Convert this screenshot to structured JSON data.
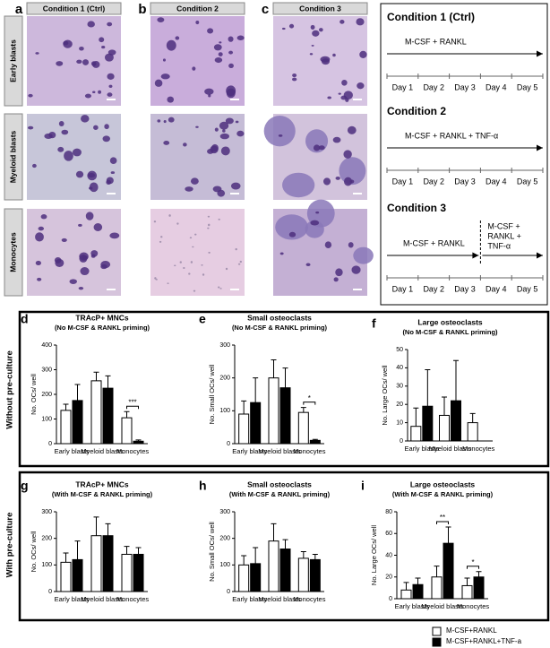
{
  "micrographs": {
    "letters": [
      "a",
      "b",
      "c"
    ],
    "columns": [
      "Condition 1 (Ctrl)",
      "Condition 2",
      "Condition 3"
    ],
    "rows": [
      "Early blasts",
      "Myeloid blasts",
      "Monocytes"
    ]
  },
  "timeline": {
    "days": [
      "Day 1",
      "Day 2",
      "Day 3",
      "Day 4",
      "Day 5"
    ],
    "conditions": [
      {
        "title": "Condition 1 (Ctrl)",
        "phases": [
          [
            "M-CSF + RANKL"
          ]
        ]
      },
      {
        "title": "Condition 2",
        "phases": [
          [
            "M-CSF + RANKL + TNF-α"
          ]
        ]
      },
      {
        "title": "Condition 3",
        "phases": [
          [
            "M-CSF + RANKL"
          ],
          [
            "M-CSF +",
            "RANKL +",
            "TNF-α"
          ]
        ]
      }
    ]
  },
  "sections": [
    "Without pre-culture",
    "With pre-culture"
  ],
  "legend": [
    {
      "name": "M-CSF+RANKL",
      "color": "#ffffff"
    },
    {
      "name": "M-CSF+RANKL+TNF-a",
      "color": "#000000"
    }
  ],
  "chart_data": [
    {
      "type": "bar",
      "panel": "d",
      "title": "TRAcP+ MNCs",
      "subtitle": "(No M-CSF & RANKL priming)",
      "y_label": "No. OCs/ well",
      "categories": [
        "Early blasts",
        "Myeloid blasts",
        "Monocytes"
      ],
      "ylim": [
        0,
        400
      ],
      "yticks": [
        0,
        100,
        200,
        300,
        400
      ],
      "series": [
        {
          "values": [
            135,
            255,
            105
          ],
          "errors": [
            25,
            35,
            25
          ]
        },
        {
          "values": [
            175,
            225,
            10
          ],
          "errors": [
            65,
            50,
            5
          ]
        }
      ],
      "significance": [
        null,
        null,
        "***"
      ]
    },
    {
      "type": "bar",
      "panel": "e",
      "title": "Small osteoclasts",
      "subtitle": "(No M-CSF & RANKL priming)",
      "y_label": "No. Small OCs/ well",
      "categories": [
        "Early blasts",
        "Myeloid blasts",
        "Monocytes"
      ],
      "ylim": [
        0,
        300
      ],
      "yticks": [
        0,
        100,
        200,
        300
      ],
      "series": [
        {
          "values": [
            90,
            200,
            95
          ],
          "errors": [
            40,
            55,
            15
          ]
        },
        {
          "values": [
            125,
            170,
            10
          ],
          "errors": [
            75,
            60,
            3
          ]
        }
      ],
      "significance": [
        null,
        null,
        "*"
      ]
    },
    {
      "type": "bar",
      "panel": "f",
      "title": "Large osteoclasts",
      "subtitle": "(No M-CSF & RANKL priming)",
      "y_label": "No. Large OCs/ well",
      "categories": [
        "Early blasts",
        "Myeloid blasts",
        "Monocytes"
      ],
      "ylim": [
        0,
        50
      ],
      "yticks": [
        0,
        10,
        20,
        30,
        40,
        50
      ],
      "series": [
        {
          "values": [
            8,
            14,
            10
          ],
          "errors": [
            10,
            10,
            5
          ]
        },
        {
          "values": [
            19,
            22,
            null
          ],
          "errors": [
            20,
            22,
            null
          ]
        }
      ],
      "significance": [
        null,
        null,
        null
      ]
    },
    {
      "type": "bar",
      "panel": "g",
      "title": "TRAcP+ MNCs",
      "subtitle": "(With M-CSF & RANKL priming)",
      "y_label": "No. OCs/ well",
      "categories": [
        "Early blasts",
        "Myeloid blasts",
        "Monocytes"
      ],
      "ylim": [
        0,
        300
      ],
      "yticks": [
        0,
        100,
        200,
        300
      ],
      "series": [
        {
          "values": [
            110,
            210,
            140
          ],
          "errors": [
            35,
            70,
            30
          ]
        },
        {
          "values": [
            120,
            210,
            140
          ],
          "errors": [
            70,
            45,
            25
          ]
        }
      ],
      "significance": [
        null,
        null,
        null
      ]
    },
    {
      "type": "bar",
      "panel": "h",
      "title": "Small osteoclasts",
      "subtitle": "(With M-CSF & RANKL priming)",
      "y_label": "No. Small OCs/ well",
      "categories": [
        "Early blasts",
        "Myeloid blasts",
        "Monocytes"
      ],
      "ylim": [
        0,
        300
      ],
      "yticks": [
        0,
        100,
        200,
        300
      ],
      "series": [
        {
          "values": [
            100,
            190,
            125
          ],
          "errors": [
            35,
            65,
            25
          ]
        },
        {
          "values": [
            105,
            160,
            120
          ],
          "errors": [
            60,
            35,
            20
          ]
        }
      ],
      "significance": [
        null,
        null,
        null
      ]
    },
    {
      "type": "bar",
      "panel": "i",
      "title": "Large osteoclasts",
      "subtitle": "(With M-CSF & RANKL priming)",
      "y_label": "No. Large OCs/ well",
      "categories": [
        "Early blasts",
        "Myeloid blasts",
        "Monocytes"
      ],
      "ylim": [
        0,
        80
      ],
      "yticks": [
        0,
        20,
        40,
        60,
        80
      ],
      "series": [
        {
          "values": [
            8,
            20,
            12
          ],
          "errors": [
            7,
            10,
            7
          ]
        },
        {
          "values": [
            13,
            51,
            20
          ],
          "errors": [
            6,
            15,
            5
          ]
        }
      ],
      "significance": [
        null,
        "**",
        "*"
      ]
    }
  ]
}
